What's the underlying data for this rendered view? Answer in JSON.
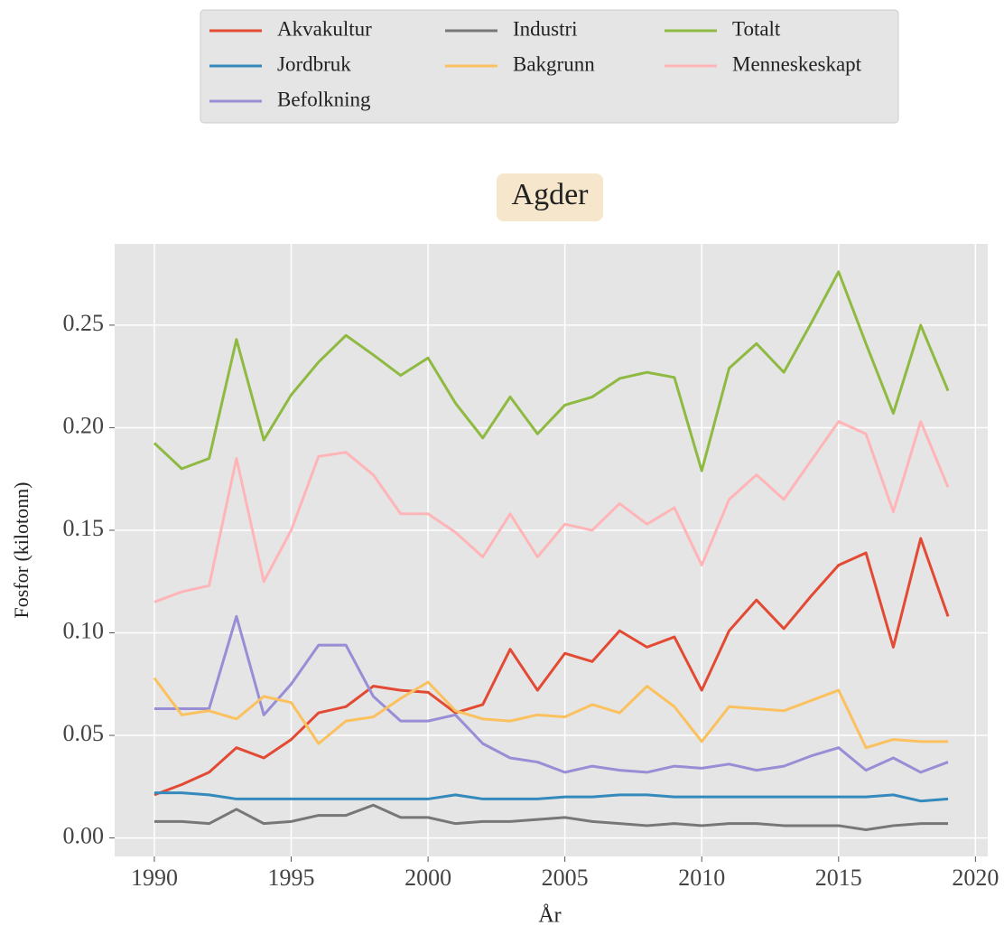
{
  "chart_data": {
    "type": "line",
    "title": "Agder",
    "x_label": "År",
    "y_label": "Fosfor (kilotonn)",
    "x": [
      1990,
      1991,
      1992,
      1993,
      1994,
      1995,
      1996,
      1997,
      1998,
      1999,
      2000,
      2001,
      2002,
      2003,
      2004,
      2005,
      2006,
      2007,
      2008,
      2009,
      2010,
      2011,
      2012,
      2013,
      2014,
      2015,
      2016,
      2017,
      2018,
      2019
    ],
    "series": [
      {
        "name": "Akvakultur",
        "color": "#E24A33",
        "values": [
          0.021,
          0.026,
          0.032,
          0.044,
          0.039,
          0.048,
          0.061,
          0.064,
          0.074,
          0.072,
          0.071,
          0.061,
          0.065,
          0.092,
          0.072,
          0.09,
          0.086,
          0.101,
          0.093,
          0.098,
          0.072,
          0.101,
          0.116,
          0.102,
          0.118,
          0.133,
          0.139,
          0.093,
          0.146,
          0.108
        ]
      },
      {
        "name": "Jordbruk",
        "color": "#348ABD",
        "values": [
          0.022,
          0.022,
          0.021,
          0.019,
          0.019,
          0.019,
          0.019,
          0.019,
          0.019,
          0.019,
          0.019,
          0.021,
          0.019,
          0.019,
          0.019,
          0.02,
          0.02,
          0.021,
          0.021,
          0.02,
          0.02,
          0.02,
          0.02,
          0.02,
          0.02,
          0.02,
          0.02,
          0.021,
          0.018,
          0.019
        ]
      },
      {
        "name": "Befolkning",
        "color": "#988ED5",
        "values": [
          0.063,
          0.063,
          0.063,
          0.108,
          0.06,
          0.075,
          0.094,
          0.094,
          0.069,
          0.057,
          0.057,
          0.06,
          0.046,
          0.039,
          0.037,
          0.032,
          0.035,
          0.033,
          0.032,
          0.035,
          0.034,
          0.036,
          0.033,
          0.035,
          0.04,
          0.044,
          0.033,
          0.039,
          0.032,
          0.037
        ]
      },
      {
        "name": "Industri",
        "color": "#777777",
        "values": [
          0.008,
          0.008,
          0.007,
          0.014,
          0.007,
          0.008,
          0.011,
          0.011,
          0.016,
          0.01,
          0.01,
          0.007,
          0.008,
          0.008,
          0.009,
          0.01,
          0.008,
          0.007,
          0.006,
          0.007,
          0.006,
          0.007,
          0.007,
          0.006,
          0.006,
          0.006,
          0.004,
          0.006,
          0.007,
          0.007
        ]
      },
      {
        "name": "Bakgrunn",
        "color": "#FBC15E",
        "values": [
          0.078,
          0.06,
          0.062,
          0.058,
          0.069,
          0.066,
          0.046,
          0.057,
          0.059,
          0.068,
          0.076,
          0.062,
          0.058,
          0.057,
          0.06,
          0.059,
          0.065,
          0.061,
          0.074,
          0.064,
          0.047,
          0.064,
          0.063,
          0.062,
          0.067,
          0.072,
          0.044,
          0.048,
          0.047,
          0.047
        ]
      },
      {
        "name": "Totalt",
        "color": "#8EBA42",
        "values": [
          0.1925,
          0.18,
          0.185,
          0.243,
          0.194,
          0.216,
          0.232,
          0.245,
          0.2355,
          0.2255,
          0.234,
          0.212,
          0.195,
          0.215,
          0.197,
          0.211,
          0.215,
          0.224,
          0.227,
          0.2245,
          0.179,
          0.229,
          0.241,
          0.227,
          0.251,
          0.276,
          0.241,
          0.207,
          0.25,
          0.218
        ]
      },
      {
        "name": "Menneskeskapt",
        "color": "#FFB5B8",
        "values": [
          0.115,
          0.12,
          0.123,
          0.185,
          0.125,
          0.15,
          0.186,
          0.188,
          0.177,
          0.158,
          0.158,
          0.149,
          0.137,
          0.158,
          0.137,
          0.153,
          0.15,
          0.163,
          0.153,
          0.161,
          0.133,
          0.165,
          0.177,
          0.165,
          0.184,
          0.203,
          0.197,
          0.159,
          0.203,
          0.171
        ]
      }
    ],
    "xlim": [
      1988.55,
      2020.45
    ],
    "ylim": [
      -0.009,
      0.2896
    ],
    "xticks": [
      1990,
      1995,
      2000,
      2005,
      2010,
      2015,
      2020
    ],
    "yticks": [
      {
        "value": 0,
        "label": "0.00"
      },
      {
        "value": 0.05,
        "label": "0.05"
      },
      {
        "value": 0.1,
        "label": "0.10"
      },
      {
        "value": 0.15,
        "label": "0.15"
      },
      {
        "value": 0.2,
        "label": "0.20"
      },
      {
        "value": 0.25,
        "label": "0.25"
      }
    ],
    "grid": true,
    "legend": "top"
  }
}
